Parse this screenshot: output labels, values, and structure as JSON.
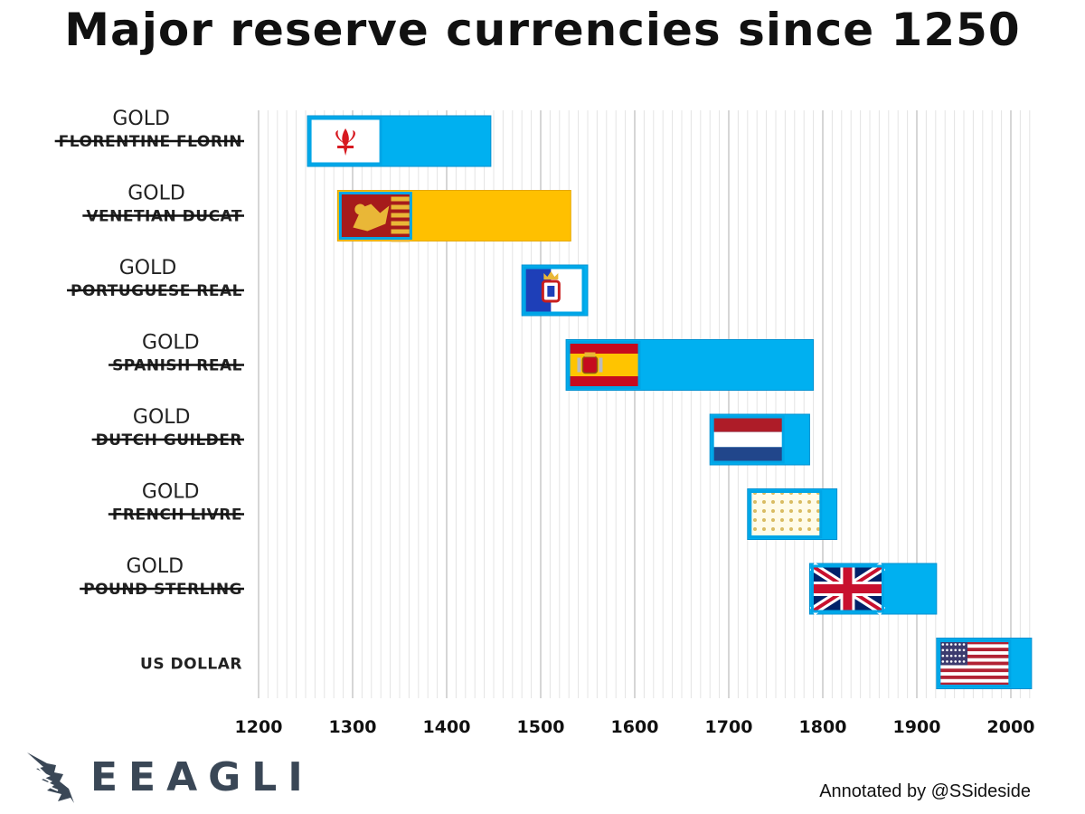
{
  "title": "Major reserve currencies since 1250",
  "chart_data": {
    "type": "bar",
    "orientation": "horizontal-range",
    "xlim": [
      1200,
      2000
    ],
    "x_ticks": [
      1200,
      1300,
      1400,
      1500,
      1600,
      1700,
      1800,
      1900,
      2000
    ],
    "grid": true,
    "series": [
      {
        "label": "FLORENTINE FLORIN",
        "annotation": "GOLD",
        "struck": true,
        "start": 1252,
        "end": 1447,
        "color": "#00b0f0",
        "flag": "florence-flag-icon"
      },
      {
        "label": "VENETIAN DUCAT",
        "annotation": "GOLD",
        "struck": true,
        "start": 1284,
        "end": 1532,
        "color": "#ffc000",
        "flag": "venice-flag-icon"
      },
      {
        "label": "PORTUGUESE REAL",
        "annotation": "GOLD",
        "struck": true,
        "start": 1480,
        "end": 1550,
        "color": "#00b0f0",
        "flag": "portugal-flag-icon"
      },
      {
        "label": "SPANISH REAL",
        "annotation": "GOLD",
        "struck": true,
        "start": 1527,
        "end": 1790,
        "color": "#00b0f0",
        "flag": "spain-flag-icon"
      },
      {
        "label": "DUTCH GUILDER",
        "annotation": "GOLD",
        "struck": true,
        "start": 1680,
        "end": 1786,
        "color": "#00b0f0",
        "flag": "netherlands-flag-icon"
      },
      {
        "label": "FRENCH LIVRE",
        "annotation": "GOLD",
        "struck": true,
        "start": 1720,
        "end": 1815,
        "color": "#00b0f0",
        "flag": "france-royal-flag-icon"
      },
      {
        "label": "POUND STERLING",
        "annotation": "GOLD",
        "struck": true,
        "start": 1786,
        "end": 1921,
        "color": "#00b0f0",
        "flag": "uk-flag-icon"
      },
      {
        "label": "US DOLLAR",
        "annotation": "",
        "struck": false,
        "start": 1921,
        "end": 2022,
        "color": "#00b0f0",
        "flag": "us-flag-icon"
      }
    ]
  },
  "logo": {
    "text": "EEAGLI",
    "icon": "eagle-icon"
  },
  "credit": "Annotated by @SSideside"
}
